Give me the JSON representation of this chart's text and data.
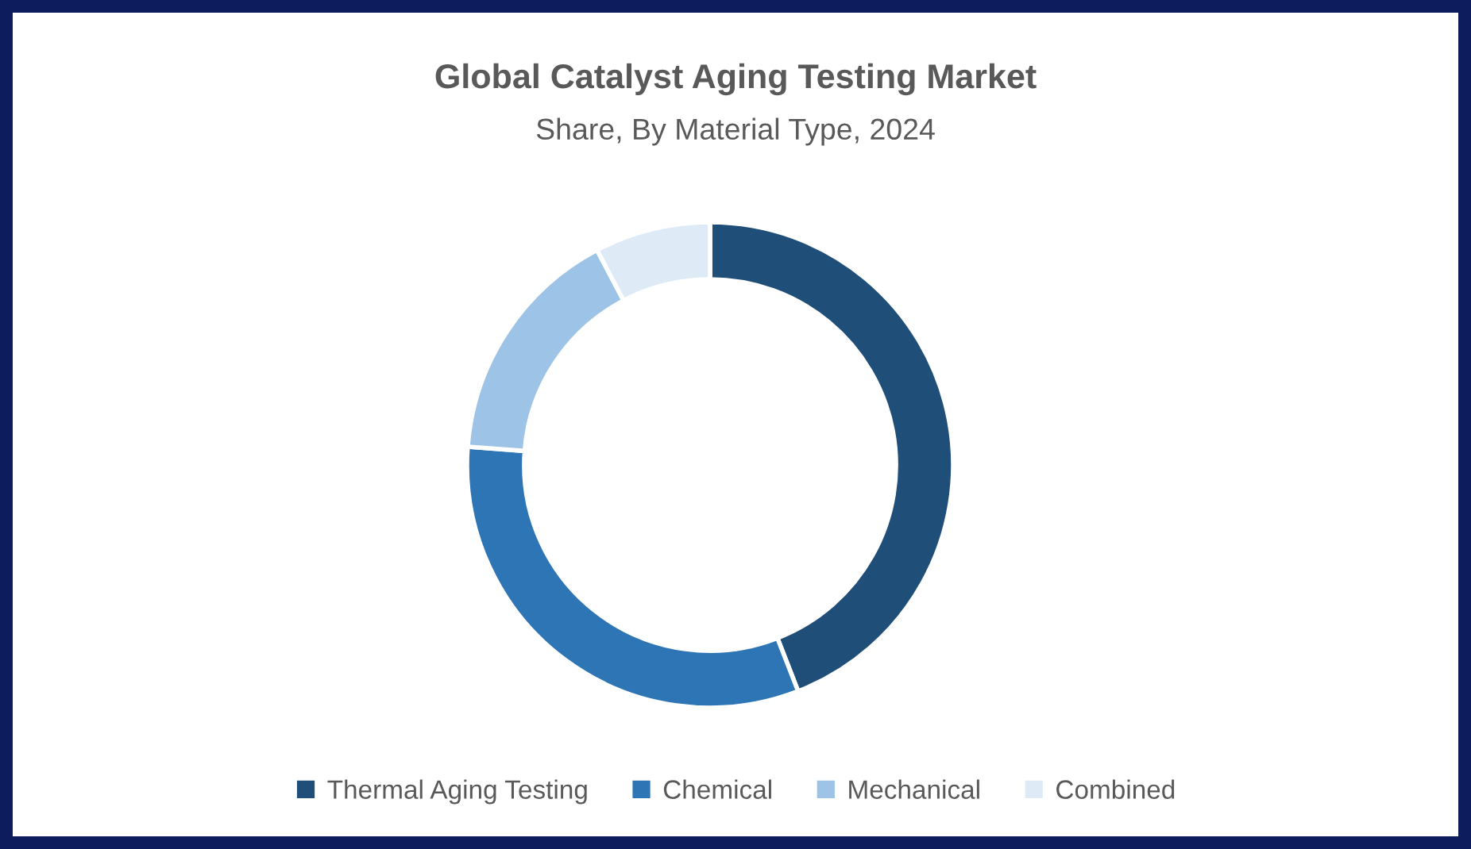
{
  "chart_data": {
    "type": "donut",
    "title": "Global Catalyst Aging Testing Market",
    "subtitle": "Share, By Material Type, 2024",
    "categories": [
      "Thermal Aging Testing",
      "Chemical",
      "Mechanical",
      "Combined"
    ],
    "values": [
      44.1,
      32.1,
      16.1,
      7.7
    ],
    "colors": [
      "#1f4e79",
      "#2e75b6",
      "#9dc3e6",
      "#deebf7"
    ],
    "legend": "bottom"
  }
}
